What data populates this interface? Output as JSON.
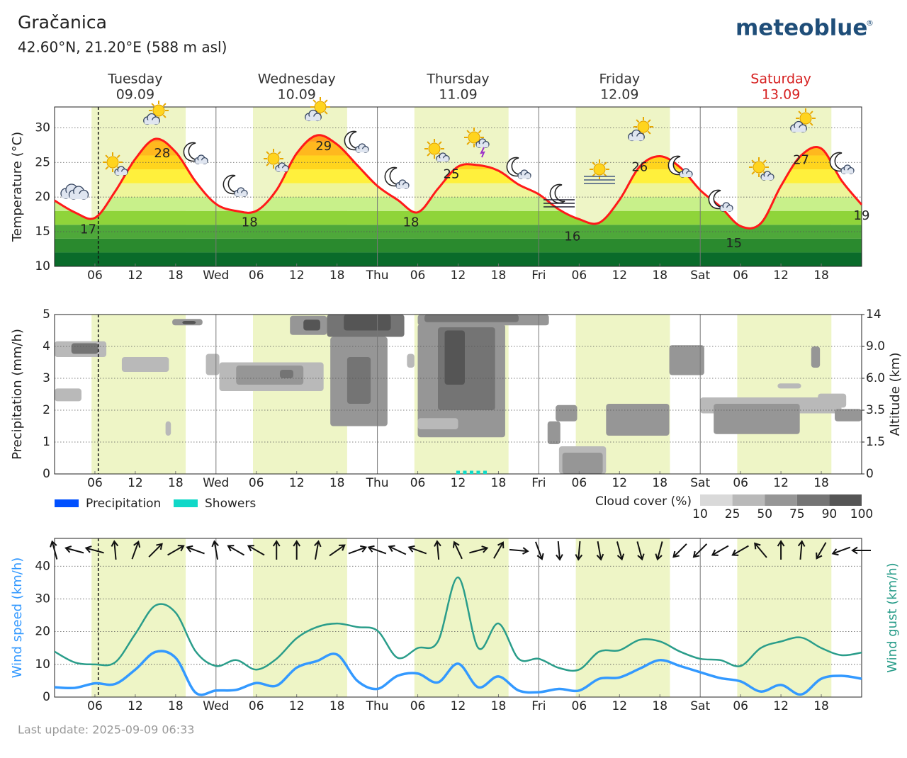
{
  "header": {
    "location": "Gračanica",
    "coordinates": "42.60°N, 21.20°E (588 m asl)",
    "brand": "meteoblue",
    "brand_mark": "®",
    "last_update": "Last update: 2025-09-09 06:33"
  },
  "time_axis": {
    "daylight": [
      [
        5.5,
        19.5
      ],
      [
        29.5,
        43.5
      ],
      [
        53.5,
        67.5
      ],
      [
        77.5,
        91.5
      ],
      [
        101.5,
        115.5
      ]
    ],
    "daylight_color": "#eef5c6",
    "current_time": 6.5
  },
  "chart_data": [
    {
      "type": "temperature",
      "ylabel": "Temperature (°C)",
      "day_headers": [
        {
          "day": "Tuesday",
          "date": "09.09",
          "hour": 12,
          "color": "#333333"
        },
        {
          "day": "Wednesday",
          "date": "10.09",
          "hour": 36,
          "color": "#333333"
        },
        {
          "day": "Thursday",
          "date": "11.09",
          "hour": 60,
          "color": "#333333"
        },
        {
          "day": "Friday",
          "date": "12.09",
          "hour": 84,
          "color": "#333333"
        },
        {
          "day": "Saturday",
          "date": "13.09",
          "hour": 108,
          "color": "#d62020"
        }
      ],
      "xlim": [
        0,
        120
      ],
      "xticks": [
        {
          "value": 6,
          "label": "06"
        },
        12,
        18,
        {
          "value": 24,
          "label": "Wed"
        },
        {
          "value": 30,
          "label": "06"
        },
        {
          "value": 36,
          "label": "12"
        },
        {
          "value": 42,
          "label": "18"
        },
        {
          "value": 48,
          "label": "Thu"
        },
        {
          "value": 54,
          "label": "06"
        },
        {
          "value": 60,
          "label": "12"
        },
        {
          "value": 66,
          "label": "18"
        },
        {
          "value": 72,
          "label": "Fri"
        },
        {
          "value": 78,
          "label": "06"
        },
        {
          "value": 84,
          "label": "12"
        },
        {
          "value": 90,
          "label": "18"
        },
        {
          "value": 96,
          "label": "Sat"
        },
        {
          "value": 102,
          "label": "06"
        },
        {
          "value": 108,
          "label": "12"
        },
        {
          "value": 114,
          "label": "18"
        }
      ],
      "ylim": [
        10,
        33
      ],
      "yticks": [
        10,
        15,
        20,
        25,
        30
      ],
      "grid": true,
      "x": [
        0,
        3,
        6,
        9,
        12,
        15,
        18,
        21,
        24,
        27,
        30,
        33,
        36,
        39,
        42,
        45,
        48,
        51,
        54,
        57,
        60,
        63,
        66,
        69,
        72,
        75,
        78,
        81,
        84,
        87,
        90,
        93,
        96,
        99,
        102,
        105,
        108,
        111,
        114,
        117,
        120
      ],
      "series": [
        {
          "color": "#ff1a1a",
          "values": [
            19.5,
            17.8,
            17.0,
            20.8,
            25.5,
            28.4,
            26.5,
            22.2,
            19.0,
            18.0,
            18.0,
            21.0,
            26.3,
            28.9,
            27.6,
            24.6,
            21.6,
            19.6,
            17.8,
            21.2,
            24.4,
            24.6,
            23.8,
            21.8,
            20.4,
            18.2,
            16.8,
            16.3,
            19.6,
            24.4,
            25.9,
            24.3,
            21.0,
            18.6,
            15.8,
            16.2,
            21.6,
            26.0,
            27.0,
            22.4,
            18.9
          ]
        }
      ],
      "annotations": [
        {
          "x": 5,
          "value": 17
        },
        {
          "x": 16,
          "value": 28
        },
        {
          "x": 29,
          "value": 18
        },
        {
          "x": 40,
          "value": 29
        },
        {
          "x": 53,
          "value": 18
        },
        {
          "x": 59,
          "value": 25
        },
        {
          "x": 77,
          "value": 16
        },
        {
          "x": 87,
          "value": 26
        },
        {
          "x": 101,
          "value": 15
        },
        {
          "x": 111,
          "value": 27
        },
        {
          "x": 120,
          "value": 19
        }
      ],
      "fill_bands": [
        {
          "from": 10,
          "to": 12,
          "color": "#0a6b2a"
        },
        {
          "from": 12,
          "to": 14,
          "color": "#2a8a2e"
        },
        {
          "from": 14,
          "to": 16,
          "color": "#4ea83a"
        },
        {
          "from": 16,
          "to": 18,
          "color": "#8fd43a"
        },
        {
          "from": 18,
          "to": 20,
          "color": "#c8f08a"
        },
        {
          "from": 20,
          "to": 22,
          "color": "#eef59a"
        },
        {
          "from": 22,
          "to": 24,
          "color": "#fff03c"
        },
        {
          "from": 24,
          "to": 26,
          "color": "#ffd51e"
        },
        {
          "from": 26,
          "to": 28,
          "color": "#ffb81e"
        },
        {
          "from": 28,
          "to": 33,
          "color": "#ff9c1e"
        }
      ]
    },
    {
      "type": "precipitation",
      "ylabel": "Precipitation (mm/h)",
      "y2label": "Altitude (km)",
      "xlim": [
        0,
        120
      ],
      "xticks": [
        {
          "value": 6,
          "label": "06"
        },
        12,
        18,
        {
          "value": 24,
          "label": "Wed"
        },
        {
          "value": 30,
          "label": "06"
        },
        {
          "value": 36,
          "label": "12"
        },
        {
          "value": 42,
          "label": "18"
        },
        {
          "value": 48,
          "label": "Thu"
        },
        {
          "value": 54,
          "label": "06"
        },
        {
          "value": 60,
          "label": "12"
        },
        {
          "value": 66,
          "label": "18"
        },
        {
          "value": 72,
          "label": "Fri"
        },
        {
          "value": 78,
          "label": "06"
        },
        {
          "value": 84,
          "label": "12"
        },
        {
          "value": 90,
          "label": "18"
        },
        {
          "value": 96,
          "label": "Sat"
        },
        {
          "value": 102,
          "label": "06"
        },
        {
          "value": 108,
          "label": "12"
        },
        {
          "value": 114,
          "label": "18"
        }
      ],
      "ylim": [
        0,
        5
      ],
      "yticks": [
        0,
        1,
        2,
        3,
        4,
        5
      ],
      "grid": true,
      "y2lim": [
        0,
        14
      ],
      "y2ticks": [
        0,
        1.5,
        3.5,
        {
          "value": 6,
          "label": "6.0"
        },
        {
          "value": 9,
          "label": "9.0"
        },
        14
      ],
      "x": [
        60,
        61,
        62,
        63,
        64
      ],
      "series": [
        {
          "name": "Precipitation",
          "color": "#0050ff",
          "values": [
            0,
            0,
            0,
            0,
            0
          ]
        },
        {
          "name": "Showers",
          "color": "#10d8c8",
          "values": [
            0.1,
            0.1,
            0.1,
            0.1,
            0.1
          ]
        }
      ],
      "cloud_cover": {
        "title": "Cloud cover (%)",
        "levels": [
          10,
          25,
          50,
          75,
          90,
          100
        ],
        "colors": [
          "#d9d9d9",
          "#b9b9b9",
          "#969696",
          "#747474",
          "#555555"
        ],
        "patches": [
          {
            "start": 0,
            "end": 7.7,
            "bottom": 8.0,
            "top": 9.8,
            "cover": 25
          },
          {
            "start": 2.5,
            "end": 6.5,
            "bottom": 8.3,
            "top": 9.5,
            "cover": 75
          },
          {
            "start": 0,
            "end": 4,
            "bottom": 4.2,
            "top": 5.2,
            "cover": 25
          },
          {
            "start": 10,
            "end": 17,
            "bottom": 6.6,
            "top": 8.0,
            "cover": 25
          },
          {
            "start": 17.5,
            "end": 22,
            "bottom": 12.3,
            "top": 13.3,
            "cover": 50
          },
          {
            "start": 19,
            "end": 21,
            "bottom": 12.5,
            "top": 13.0,
            "cover": 90
          },
          {
            "start": 16.5,
            "end": 17.3,
            "bottom": 1.9,
            "top": 2.8,
            "cover": 25
          },
          {
            "start": 22.5,
            "end": 24.5,
            "bottom": 6.3,
            "top": 8.3,
            "cover": 25
          },
          {
            "start": 24.5,
            "end": 40,
            "bottom": 5.0,
            "top": 7.5,
            "cover": 25
          },
          {
            "start": 27,
            "end": 37,
            "bottom": 5.5,
            "top": 7.2,
            "cover": 50
          },
          {
            "start": 33.5,
            "end": 35.5,
            "bottom": 6.0,
            "top": 6.8,
            "cover": 75
          },
          {
            "start": 35,
            "end": 40.5,
            "bottom": 10.8,
            "top": 13.8,
            "cover": 50
          },
          {
            "start": 37,
            "end": 39.5,
            "bottom": 11.5,
            "top": 13.2,
            "cover": 90
          },
          {
            "start": 41,
            "end": 49.5,
            "bottom": 2.5,
            "top": 10.5,
            "cover": 50
          },
          {
            "start": 43.5,
            "end": 47,
            "bottom": 4,
            "top": 8,
            "cover": 75
          },
          {
            "start": 40.5,
            "end": 52,
            "bottom": 10.5,
            "top": 14,
            "cover": 75
          },
          {
            "start": 43,
            "end": 50,
            "bottom": 11.5,
            "top": 14,
            "cover": 90
          },
          {
            "start": 52.4,
            "end": 53.5,
            "bottom": 7,
            "top": 8.3,
            "cover": 25
          },
          {
            "start": 54,
            "end": 73.5,
            "bottom": 12.3,
            "top": 14,
            "cover": 50
          },
          {
            "start": 54,
            "end": 67,
            "bottom": 1.8,
            "top": 12.5,
            "cover": 50
          },
          {
            "start": 55,
            "end": 69,
            "bottom": 12.8,
            "top": 14,
            "cover": 75
          },
          {
            "start": 57,
            "end": 65.5,
            "bottom": 3.5,
            "top": 12,
            "cover": 75
          },
          {
            "start": 58,
            "end": 61,
            "bottom": 5.5,
            "top": 11.5,
            "cover": 90
          },
          {
            "start": 54,
            "end": 60,
            "bottom": 2.3,
            "top": 3.0,
            "cover": 25
          },
          {
            "start": 73.3,
            "end": 75.2,
            "bottom": 1.4,
            "top": 2.8,
            "cover": 50
          },
          {
            "start": 74.5,
            "end": 77.7,
            "bottom": 2.8,
            "top": 3.9,
            "cover": 50
          },
          {
            "start": 75,
            "end": 82,
            "bottom": 0,
            "top": 1.3,
            "cover": 25
          },
          {
            "start": 75.5,
            "end": 81.5,
            "bottom": 0,
            "top": 1.0,
            "cover": 50
          },
          {
            "start": 82,
            "end": 91.4,
            "bottom": 1.9,
            "top": 4.0,
            "cover": 50
          },
          {
            "start": 91.4,
            "end": 96.6,
            "bottom": 6.3,
            "top": 9.2,
            "cover": 50
          },
          {
            "start": 96,
            "end": 117,
            "bottom": 3.3,
            "top": 4.5,
            "cover": 25
          },
          {
            "start": 98,
            "end": 110.8,
            "bottom": 2.0,
            "top": 4.0,
            "cover": 50
          },
          {
            "start": 112.5,
            "end": 113.8,
            "bottom": 7,
            "top": 9,
            "cover": 50
          },
          {
            "start": 107.5,
            "end": 111,
            "bottom": 5.2,
            "top": 5.6,
            "cover": 25
          },
          {
            "start": 113.5,
            "end": 117.7,
            "bottom": 3.7,
            "top": 4.8,
            "cover": 25
          },
          {
            "start": 116,
            "end": 120,
            "bottom": 2.8,
            "top": 3.6,
            "cover": 50
          }
        ]
      }
    },
    {
      "type": "wind",
      "ylabel": "Wind speed (km/h)",
      "y2label": "Wind gust (km/h)",
      "xlim": [
        0,
        120
      ],
      "xticks": [
        {
          "value": 6,
          "label": "06"
        },
        12,
        18,
        {
          "value": 24,
          "label": "Wed"
        },
        {
          "value": 30,
          "label": "06"
        },
        {
          "value": 36,
          "label": "12"
        },
        {
          "value": 42,
          "label": "18"
        },
        {
          "value": 48,
          "label": "Thu"
        },
        {
          "value": 54,
          "label": "06"
        },
        {
          "value": 60,
          "label": "12"
        },
        {
          "value": 66,
          "label": "18"
        },
        {
          "value": 72,
          "label": "Fri"
        },
        {
          "value": 78,
          "label": "06"
        },
        {
          "value": 84,
          "label": "12"
        },
        {
          "value": 90,
          "label": "18"
        },
        {
          "value": 96,
          "label": "Sat"
        },
        {
          "value": 102,
          "label": "06"
        },
        {
          "value": 108,
          "label": "12"
        },
        {
          "value": 114,
          "label": "18"
        }
      ],
      "ylim": [
        0,
        48.5
      ],
      "yticks": [
        0,
        10,
        20,
        30,
        40
      ],
      "grid": true,
      "x": [
        0,
        3,
        6,
        9,
        12,
        15,
        18,
        21,
        24,
        27,
        30,
        33,
        36,
        39,
        42,
        45,
        48,
        51,
        54,
        57,
        60,
        63,
        66,
        69,
        72,
        75,
        78,
        81,
        84,
        87,
        90,
        93,
        96,
        99,
        102,
        105,
        108,
        111,
        114,
        117,
        120
      ],
      "series": [
        {
          "name": "Wind speed",
          "color": "#3399ff",
          "values": [
            3,
            2.8,
            4.2,
            4,
            8.4,
            13.8,
            12,
            1.3,
            2,
            2.2,
            4.3,
            3.5,
            9,
            11,
            13,
            5,
            2.5,
            6.5,
            7.2,
            4.5,
            10.2,
            3,
            6.3,
            2,
            1.5,
            2.5,
            2,
            5.6,
            6,
            8.7,
            11.3,
            9.5,
            7.6,
            5.8,
            4.8,
            1.7,
            3.7,
            0.8,
            5.6,
            6.5,
            5.6
          ]
        },
        {
          "name": "Wind gust",
          "color": "#2a9d8a",
          "values": [
            13.9,
            10.6,
            10,
            10.6,
            19.3,
            28,
            25.8,
            13.9,
            9.5,
            11.3,
            8.4,
            11.7,
            18,
            21.4,
            22.5,
            21.4,
            20.3,
            12,
            15,
            17,
            36.6,
            15,
            22.5,
            11.7,
            11.7,
            8.9,
            8.4,
            13.9,
            14.3,
            17.5,
            17,
            13.9,
            11.7,
            11.3,
            9.5,
            15,
            17,
            18.2,
            15,
            12.8,
            13.6
          ]
        }
      ],
      "wind_direction": [
        345,
        285,
        285,
        355,
        20,
        45,
        60,
        290,
        350,
        300,
        300,
        0,
        0,
        10,
        55,
        70,
        290,
        295,
        290,
        355,
        335,
        75,
        30,
        95,
        160,
        175,
        185,
        170,
        165,
        165,
        195,
        225,
        225,
        240,
        240,
        320,
        0,
        5,
        210,
        250,
        270
      ]
    }
  ]
}
